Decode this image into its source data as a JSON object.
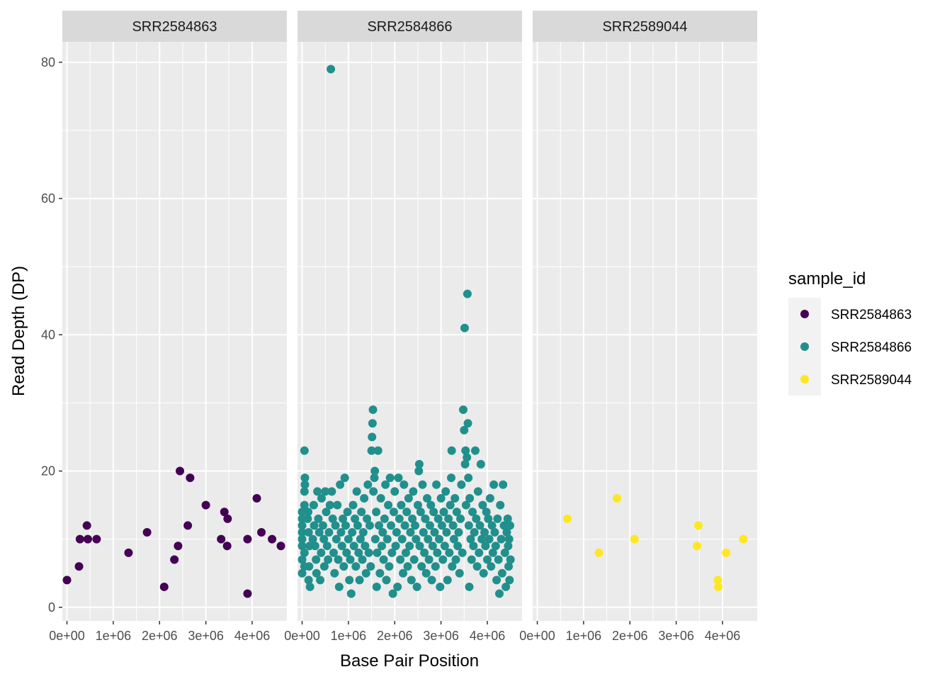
{
  "chart_data": {
    "type": "scatter",
    "xlabel": "Base Pair Position",
    "ylabel": "Read Depth (DP)",
    "xlim": [
      -100000,
      4750000
    ],
    "ylim": [
      -2,
      83
    ],
    "x_ticks": [
      0,
      1000000,
      2000000,
      3000000,
      4000000
    ],
    "x_tick_labels": [
      "0e+00",
      "1e+06",
      "2e+06",
      "3e+06",
      "4e+06"
    ],
    "y_ticks": [
      0,
      20,
      40,
      60,
      80
    ],
    "y_tick_labels": [
      "0",
      "20",
      "40",
      "60",
      "80"
    ],
    "grid": true,
    "legend": {
      "title": "sample_id",
      "position": "right",
      "entries": [
        "SRR2584863",
        "SRR2584866",
        "SRR2589044"
      ]
    },
    "colors": {
      "SRR2584863": "#440154",
      "SRR2584866": "#21908C",
      "SRR2589044": "#FDE725"
    },
    "facets": [
      {
        "label": "SRR2584863",
        "series": "SRR2584863",
        "points": [
          [
            0,
            4
          ],
          [
            260000,
            6
          ],
          [
            280000,
            10
          ],
          [
            430000,
            12
          ],
          [
            450000,
            10
          ],
          [
            640000,
            10
          ],
          [
            1330000,
            8
          ],
          [
            1730000,
            11
          ],
          [
            2100000,
            3
          ],
          [
            2320000,
            7
          ],
          [
            2400000,
            9
          ],
          [
            2440000,
            20
          ],
          [
            2610000,
            12
          ],
          [
            2660000,
            19
          ],
          [
            3000000,
            15
          ],
          [
            3330000,
            10
          ],
          [
            3400000,
            14
          ],
          [
            3470000,
            13
          ],
          [
            3460000,
            9
          ],
          [
            3900000,
            2
          ],
          [
            3900000,
            10
          ],
          [
            4100000,
            16
          ],
          [
            4200000,
            11
          ],
          [
            4430000,
            10
          ],
          [
            4620000,
            9
          ]
        ]
      },
      {
        "label": "SRR2584866",
        "series": "SRR2584866",
        "points": [
          [
            0,
            5
          ],
          [
            0,
            7
          ],
          [
            0,
            9
          ],
          [
            0,
            10
          ],
          [
            0,
            11
          ],
          [
            0,
            12
          ],
          [
            0,
            13
          ],
          [
            0,
            14
          ],
          [
            50000,
            23
          ],
          [
            60000,
            19
          ],
          [
            60000,
            18
          ],
          [
            50000,
            17
          ],
          [
            50000,
            15
          ],
          [
            50000,
            8
          ],
          [
            50000,
            6
          ],
          [
            140000,
            4
          ],
          [
            170000,
            3
          ],
          [
            140000,
            11
          ],
          [
            130000,
            14
          ],
          [
            120000,
            13
          ],
          [
            150000,
            6
          ],
          [
            160000,
            9
          ],
          [
            230000,
            10
          ],
          [
            250000,
            15
          ],
          [
            260000,
            12
          ],
          [
            280000,
            9
          ],
          [
            300000,
            7
          ],
          [
            310000,
            5
          ],
          [
            330000,
            17
          ],
          [
            350000,
            13
          ],
          [
            370000,
            11
          ],
          [
            390000,
            4
          ],
          [
            410000,
            8
          ],
          [
            420000,
            16
          ],
          [
            450000,
            12
          ],
          [
            470000,
            10
          ],
          [
            480000,
            6
          ],
          [
            500000,
            17
          ],
          [
            520000,
            14
          ],
          [
            540000,
            9
          ],
          [
            560000,
            7
          ],
          [
            580000,
            11
          ],
          [
            600000,
            15
          ],
          [
            620000,
            79
          ],
          [
            640000,
            17
          ],
          [
            660000,
            13
          ],
          [
            680000,
            8
          ],
          [
            700000,
            5
          ],
          [
            720000,
            12
          ],
          [
            740000,
            10
          ],
          [
            760000,
            15
          ],
          [
            780000,
            7
          ],
          [
            800000,
            3
          ],
          [
            820000,
            18
          ],
          [
            840000,
            11
          ],
          [
            860000,
            9
          ],
          [
            880000,
            13
          ],
          [
            900000,
            6
          ],
          [
            920000,
            19
          ],
          [
            940000,
            12
          ],
          [
            960000,
            8
          ],
          [
            980000,
            14
          ],
          [
            1000000,
            10
          ],
          [
            1020000,
            4
          ],
          [
            1040000,
            7
          ],
          [
            1060000,
            2
          ],
          [
            1080000,
            11
          ],
          [
            1100000,
            15
          ],
          [
            1120000,
            9
          ],
          [
            1140000,
            13
          ],
          [
            1160000,
            6
          ],
          [
            1180000,
            17
          ],
          [
            1200000,
            12
          ],
          [
            1220000,
            8
          ],
          [
            1240000,
            4
          ],
          [
            1260000,
            10
          ],
          [
            1280000,
            14
          ],
          [
            1300000,
            7
          ],
          [
            1320000,
            11
          ],
          [
            1340000,
            16
          ],
          [
            1360000,
            9
          ],
          [
            1380000,
            5
          ],
          [
            1400000,
            13
          ],
          [
            1420000,
            18
          ],
          [
            1440000,
            8
          ],
          [
            1460000,
            12
          ],
          [
            1480000,
            6
          ],
          [
            1500000,
            23
          ],
          [
            1510000,
            25
          ],
          [
            1520000,
            27
          ],
          [
            1530000,
            29
          ],
          [
            1540000,
            17
          ],
          [
            1560000,
            19
          ],
          [
            1570000,
            20
          ],
          [
            1580000,
            10
          ],
          [
            1600000,
            14
          ],
          [
            1610000,
            3
          ],
          [
            1620000,
            8
          ],
          [
            1640000,
            23
          ],
          [
            1660000,
            12
          ],
          [
            1680000,
            5
          ],
          [
            1700000,
            16
          ],
          [
            1720000,
            9
          ],
          [
            1740000,
            11
          ],
          [
            1760000,
            7
          ],
          [
            1780000,
            13
          ],
          [
            1800000,
            18
          ],
          [
            1820000,
            4
          ],
          [
            1840000,
            10
          ],
          [
            1860000,
            15
          ],
          [
            1880000,
            6
          ],
          [
            1900000,
            19
          ],
          [
            1920000,
            12
          ],
          [
            1940000,
            8
          ],
          [
            1960000,
            2
          ],
          [
            1980000,
            14
          ],
          [
            2000000,
            17
          ],
          [
            2020000,
            9
          ],
          [
            2040000,
            11
          ],
          [
            2060000,
            3
          ],
          [
            2080000,
            19
          ],
          [
            2100000,
            13
          ],
          [
            2120000,
            7
          ],
          [
            2140000,
            15
          ],
          [
            2160000,
            10
          ],
          [
            2180000,
            5
          ],
          [
            2200000,
            18
          ],
          [
            2220000,
            12
          ],
          [
            2240000,
            8
          ],
          [
            2260000,
            14
          ],
          [
            2280000,
            6
          ],
          [
            2300000,
            16
          ],
          [
            2320000,
            9
          ],
          [
            2340000,
            11
          ],
          [
            2360000,
            4
          ],
          [
            2380000,
            13
          ],
          [
            2400000,
            17
          ],
          [
            2420000,
            7
          ],
          [
            2440000,
            12
          ],
          [
            2460000,
            10
          ],
          [
            2480000,
            3
          ],
          [
            2500000,
            15
          ],
          [
            2520000,
            20
          ],
          [
            2530000,
            21
          ],
          [
            2540000,
            9
          ],
          [
            2560000,
            14
          ],
          [
            2580000,
            6
          ],
          [
            2600000,
            18
          ],
          [
            2620000,
            11
          ],
          [
            2640000,
            8
          ],
          [
            2660000,
            13
          ],
          [
            2680000,
            5
          ],
          [
            2700000,
            16
          ],
          [
            2720000,
            10
          ],
          [
            2740000,
            7
          ],
          [
            2760000,
            12
          ],
          [
            2780000,
            15
          ],
          [
            2800000,
            4
          ],
          [
            2820000,
            9
          ],
          [
            2840000,
            14
          ],
          [
            2860000,
            11
          ],
          [
            2880000,
            6
          ],
          [
            2900000,
            18
          ],
          [
            2920000,
            8
          ],
          [
            2940000,
            13
          ],
          [
            2960000,
            10
          ],
          [
            2980000,
            3
          ],
          [
            3000000,
            16
          ],
          [
            3020000,
            12
          ],
          [
            3040000,
            7
          ],
          [
            3060000,
            14
          ],
          [
            3080000,
            9
          ],
          [
            3100000,
            17
          ],
          [
            3120000,
            11
          ],
          [
            3140000,
            4
          ],
          [
            3160000,
            13
          ],
          [
            3180000,
            8
          ],
          [
            3200000,
            15
          ],
          [
            3220000,
            19
          ],
          [
            3230000,
            23
          ],
          [
            3240000,
            6
          ],
          [
            3260000,
            12
          ],
          [
            3280000,
            10
          ],
          [
            3300000,
            16
          ],
          [
            3320000,
            7
          ],
          [
            3340000,
            14
          ],
          [
            3360000,
            9
          ],
          [
            3380000,
            11
          ],
          [
            3400000,
            5
          ],
          [
            3420000,
            13
          ],
          [
            3440000,
            18
          ],
          [
            3460000,
            8
          ],
          [
            3480000,
            29
          ],
          [
            3500000,
            26
          ],
          [
            3510000,
            41
          ],
          [
            3520000,
            21
          ],
          [
            3530000,
            23
          ],
          [
            3540000,
            15
          ],
          [
            3560000,
            22
          ],
          [
            3570000,
            46
          ],
          [
            3580000,
            27
          ],
          [
            3590000,
            19
          ],
          [
            3600000,
            12
          ],
          [
            3610000,
            3
          ],
          [
            3620000,
            16
          ],
          [
            3640000,
            10
          ],
          [
            3660000,
            7
          ],
          [
            3680000,
            14
          ],
          [
            3700000,
            9
          ],
          [
            3720000,
            11
          ],
          [
            3740000,
            23
          ],
          [
            3760000,
            13
          ],
          [
            3780000,
            6
          ],
          [
            3800000,
            17
          ],
          [
            3820000,
            8
          ],
          [
            3840000,
            12
          ],
          [
            3860000,
            21
          ],
          [
            3880000,
            10
          ],
          [
            3900000,
            15
          ],
          [
            3920000,
            5
          ],
          [
            3940000,
            11
          ],
          [
            3960000,
            9
          ],
          [
            3980000,
            14
          ],
          [
            4000000,
            7
          ],
          [
            4020000,
            13
          ],
          [
            4040000,
            10
          ],
          [
            4060000,
            16
          ],
          [
            4080000,
            6
          ],
          [
            4100000,
            12
          ],
          [
            4120000,
            8
          ],
          [
            4140000,
            18
          ],
          [
            4160000,
            11
          ],
          [
            4180000,
            9
          ],
          [
            4200000,
            4
          ],
          [
            4220000,
            13
          ],
          [
            4240000,
            7
          ],
          [
            4260000,
            2
          ],
          [
            4280000,
            15
          ],
          [
            4300000,
            10
          ],
          [
            4320000,
            5
          ],
          [
            4340000,
            18
          ],
          [
            4360000,
            12
          ],
          [
            4380000,
            8
          ],
          [
            4400000,
            3
          ],
          [
            4420000,
            11
          ],
          [
            4440000,
            13
          ],
          [
            4450000,
            9
          ],
          [
            4460000,
            6
          ],
          [
            4470000,
            10
          ],
          [
            4480000,
            4
          ],
          [
            4490000,
            12
          ],
          [
            4500000,
            7
          ]
        ]
      },
      {
        "label": "SRR2589044",
        "series": "SRR2589044",
        "points": [
          [
            650000,
            13
          ],
          [
            1330000,
            8
          ],
          [
            1720000,
            16
          ],
          [
            2100000,
            10
          ],
          [
            3450000,
            9
          ],
          [
            3480000,
            12
          ],
          [
            3900000,
            4
          ],
          [
            3910000,
            3
          ],
          [
            4080000,
            8
          ],
          [
            4450000,
            10
          ]
        ]
      }
    ]
  }
}
